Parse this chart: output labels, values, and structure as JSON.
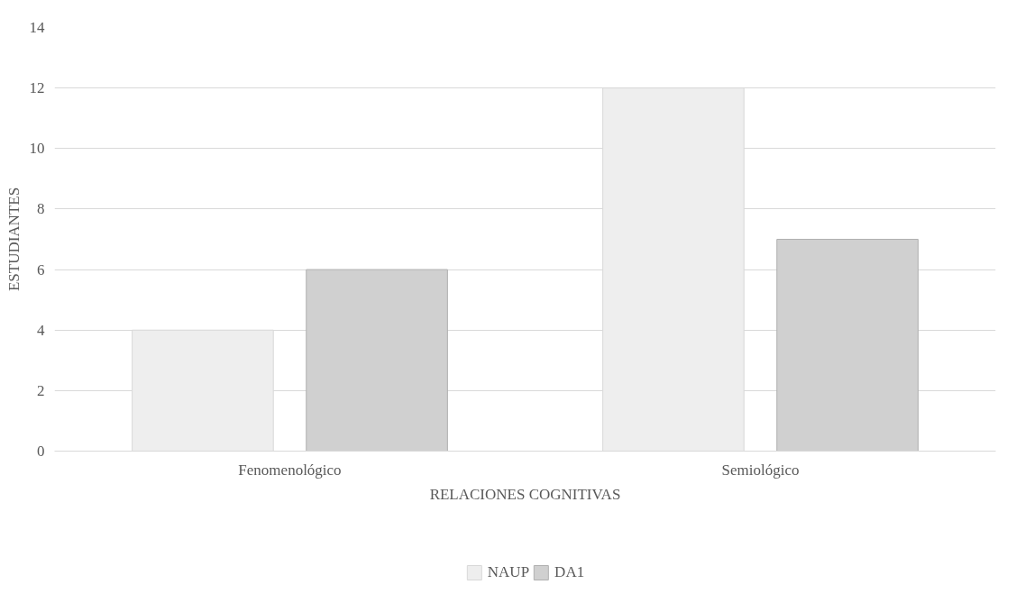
{
  "chart_data": {
    "type": "bar",
    "xlabel": "RELACIONES COGNITIVAS",
    "ylabel": "ESTUDIANTES",
    "categories": [
      "Fenomenológico",
      "Semiológico"
    ],
    "series": [
      {
        "name": "NAUP",
        "color": "#eeeeee",
        "values": [
          4,
          12
        ]
      },
      {
        "name": "DA1",
        "color": "#d0d0d0",
        "values": [
          6,
          7
        ]
      }
    ],
    "ylim": [
      0,
      14
    ],
    "yticks": [
      0,
      2,
      4,
      6,
      8,
      10,
      12,
      14
    ],
    "grid": "y",
    "legend": "bottom"
  }
}
